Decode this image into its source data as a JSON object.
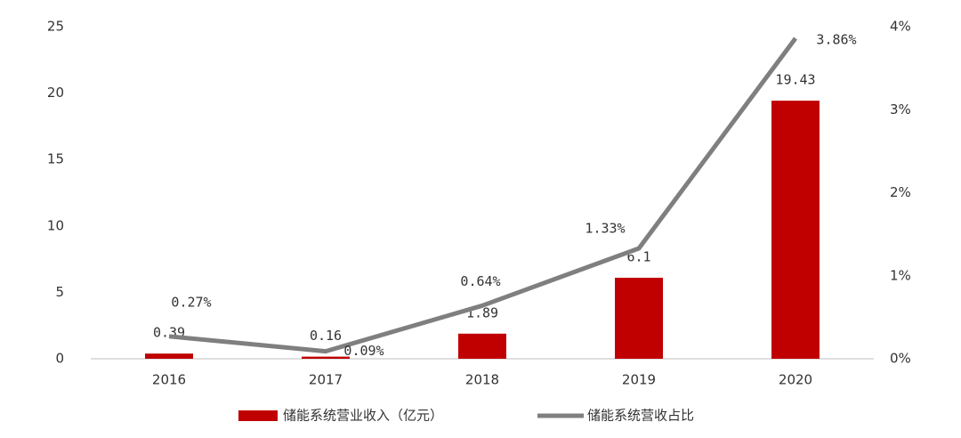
{
  "chart_data": {
    "type": "bar-line",
    "categories": [
      "2016",
      "2017",
      "2018",
      "2019",
      "2020"
    ],
    "series": [
      {
        "name": "储能系统营业收入（亿元）",
        "type": "bar",
        "color": "#c00000",
        "values": [
          0.39,
          0.16,
          1.89,
          6.1,
          19.43
        ]
      },
      {
        "name": "储能系统营收占比",
        "type": "line",
        "axis": "y2",
        "color": "#7f7f7f",
        "values": [
          0.27,
          0.09,
          0.64,
          1.33,
          3.86
        ],
        "value_labels": [
          "0.27%",
          "0.09%",
          "0.64%",
          "1.33%",
          "3.86%"
        ]
      }
    ],
    "ylim": [
      0,
      25
    ],
    "yticks": [
      0,
      5,
      10,
      15,
      20,
      25
    ],
    "y2lim": [
      0,
      4
    ],
    "y2ticks": [
      {
        "value": 0,
        "label": "0%"
      },
      {
        "value": 1,
        "label": "1%"
      },
      {
        "value": 2,
        "label": "2%"
      },
      {
        "value": 3,
        "label": "3%"
      },
      {
        "value": 4,
        "label": "4%"
      }
    ],
    "legend": "bottom"
  }
}
